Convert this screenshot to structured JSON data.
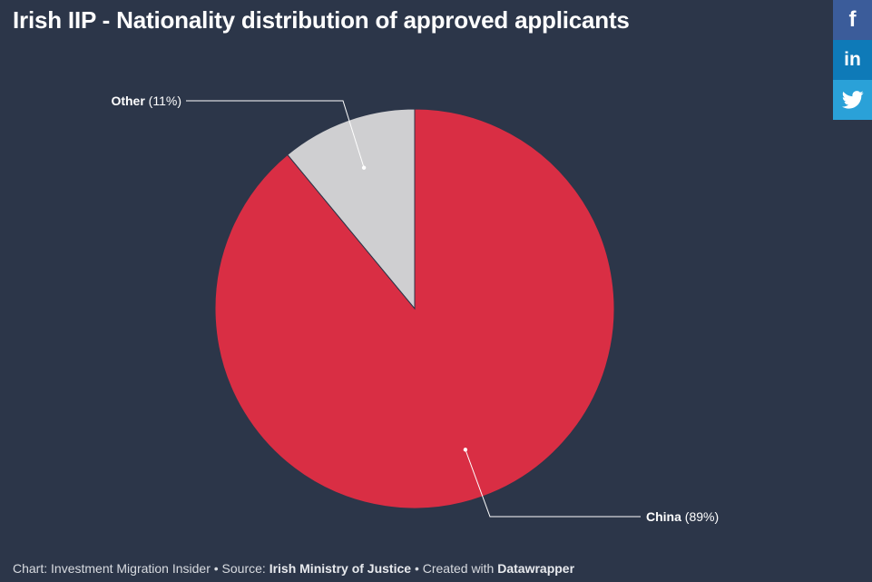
{
  "title": "Irish IIP - Nationality distribution of approved applicants",
  "chart_data": {
    "type": "pie",
    "title": "Irish IIP - Nationality distribution of approved applicants",
    "slices": [
      {
        "label": "Other",
        "value": 11,
        "display": "(11%)",
        "color": "#cfcfd1"
      },
      {
        "label": "China",
        "value": 89,
        "display": "(89%)",
        "color": "#d92e44"
      }
    ]
  },
  "share": {
    "facebook_icon": "f",
    "linkedin_icon": "in",
    "twitter_icon": "twitter-bird"
  },
  "footer": {
    "prefix": "Chart: Investment Migration Insider • Source: ",
    "source": "Irish Ministry of Justice",
    "middle": " • Created with ",
    "tool": "Datawrapper"
  },
  "colors": {
    "background": "#2c3649",
    "china": "#d92e44",
    "other": "#cfcfd1"
  }
}
